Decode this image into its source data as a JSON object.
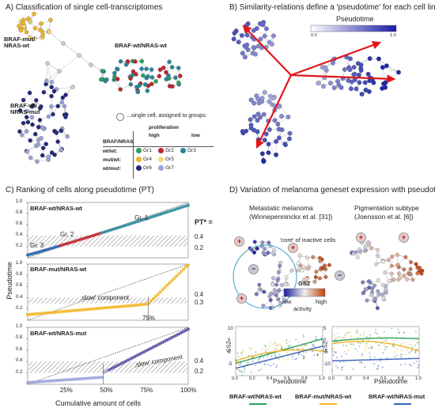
{
  "panelA": {
    "title": "A) Classification of single cell-transcriptomes",
    "group_mut_wt": "BRAF-mut/\nNRAS-wt",
    "group_wt_wt": "BRAF-wt/NRAS-wt",
    "group_wt_mut": "BRAF-wt/\nNRAS-mut",
    "single_cell_note": "...single cell, assigned to groups:",
    "legend": {
      "proliferation": "proliferation",
      "high": "high",
      "low": "low",
      "braf_nras": "BRAF/NRAS",
      "rows": [
        {
          "label": "wt/wt:",
          "groups": [
            {
              "name": "Gr1",
              "color": "#2ca05a"
            },
            {
              "name": "Gr2",
              "color": "#c0232e"
            },
            {
              "name": "Gr3",
              "color": "#26869a"
            }
          ]
        },
        {
          "label": "mut/wt:",
          "groups": [
            {
              "name": "Gr4",
              "color": "#f2b523"
            },
            {
              "name": "Gr5",
              "color": "#f6d77a"
            }
          ]
        },
        {
          "label": "wt/mut:",
          "groups": [
            {
              "name": "Gr6",
              "color": "#1f2a7a"
            },
            {
              "name": "Gr7",
              "color": "#9aa3d8"
            }
          ]
        }
      ]
    }
  },
  "panelB": {
    "title": "B) Similarity-relations define a 'pseudotime' for each cell line",
    "pseudotime": "Pseudotime",
    "pt_start": "0.0",
    "pt_end": "1.0"
  },
  "panelC": {
    "title": "C) Ranking of cells along pseudotime (PT)",
    "ylabel": "Pseudotime",
    "xlabel": "Cumulative amount of cells",
    "xticks": [
      "25%",
      "50%",
      "75%",
      "100%"
    ],
    "yticks": [
      "0.2",
      "0.4",
      "0.6",
      "0.8",
      "1.0"
    ],
    "pt_star": "PT* =",
    "sub1": {
      "label": "BRAF-wt/NRAS-wt",
      "gr1": "Gr. 1",
      "gr2": "Gr. 2",
      "gr3": "Gr. 3",
      "pt_hi": "0.4",
      "pt_lo": "0.2",
      "color": "#26869a"
    },
    "sub2": {
      "label": "BRAF-mut/NRAS-wt",
      "slow": "‚slow' component",
      "pct": "75%",
      "pt_hi": "0.4",
      "pt_lo": "0.3",
      "color": "#f2b523"
    },
    "sub3": {
      "label": "BRAF-wt/NRAS-mut",
      "slow": "‚slow' component",
      "pt_hi": "0.4",
      "pt_lo": "0.2",
      "color": "#5a4aa0"
    }
  },
  "panelD": {
    "title": "D) Variation of melanoma geneset expression with pseudotime",
    "left_title": "Metastatic melanoma\n(Winnepenninckx et al. [31])",
    "right_title": "Pigmentation subtype\n(Joensson et al. [6])",
    "core_note": "'core' of inactive cells",
    "gsz": "GSZ",
    "low": "low",
    "high": "high",
    "activity": "activity",
    "plus": "+",
    "minus": "−",
    "xlabel": "Pseudotime",
    "ylabel": "GSZ",
    "left_yticks": [
      "10",
      "5",
      "0",
      "-5"
    ],
    "right_yticks": [
      "5",
      "0",
      "-5",
      "-10"
    ],
    "xticks": [
      "0.0",
      "0.2",
      "0.4",
      "0.6",
      "0.8",
      "1.0"
    ],
    "legend_wt_wt": "BRAF-wt/NRAS-wt",
    "legend_mut_wt": "BRAF-mut/NRAS-wt",
    "legend_wt_mut": "BRAF-wt/NRAS-mut",
    "color_wt_wt": "#2ca05a",
    "color_mut_wt": "#f2b523",
    "color_wt_mut": "#3a63b8"
  }
}
